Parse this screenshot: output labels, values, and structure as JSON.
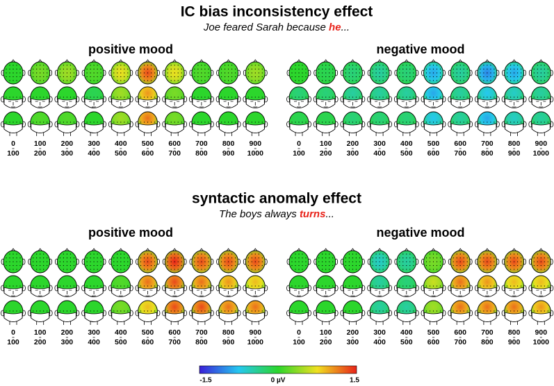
{
  "sections": [
    {
      "title": "IC bias inconsistency effect",
      "subtitle": {
        "before": "Joe feared Sarah because ",
        "highlight": "he",
        "after": "..."
      },
      "panels": [
        {
          "label": "positive mood",
          "windows": [
            {
              "start": "0",
              "end": "100"
            },
            {
              "start": "100",
              "end": "200"
            },
            {
              "start": "200",
              "end": "300"
            },
            {
              "start": "300",
              "end": "400"
            },
            {
              "start": "400",
              "end": "500"
            },
            {
              "start": "500",
              "end": "600"
            },
            {
              "start": "600",
              "end": "700"
            },
            {
              "start": "700",
              "end": "800"
            },
            {
              "start": "800",
              "end": "900"
            },
            {
              "start": "900",
              "end": "1000"
            }
          ]
        },
        {
          "label": "negative mood",
          "windows": [
            {
              "start": "0",
              "end": "100"
            },
            {
              "start": "100",
              "end": "200"
            },
            {
              "start": "200",
              "end": "300"
            },
            {
              "start": "300",
              "end": "400"
            },
            {
              "start": "400",
              "end": "500"
            },
            {
              "start": "500",
              "end": "600"
            },
            {
              "start": "600",
              "end": "700"
            },
            {
              "start": "700",
              "end": "800"
            },
            {
              "start": "800",
              "end": "900"
            },
            {
              "start": "900",
              "end": "1000"
            }
          ]
        }
      ]
    },
    {
      "title": "syntactic anomaly effect",
      "subtitle": {
        "before": "The boys always ",
        "highlight": "turns",
        "after": "..."
      },
      "panels": [
        {
          "label": "positive mood",
          "windows": [
            {
              "start": "0",
              "end": "100"
            },
            {
              "start": "100",
              "end": "200"
            },
            {
              "start": "200",
              "end": "300"
            },
            {
              "start": "300",
              "end": "400"
            },
            {
              "start": "400",
              "end": "500"
            },
            {
              "start": "500",
              "end": "600"
            },
            {
              "start": "600",
              "end": "700"
            },
            {
              "start": "700",
              "end": "800"
            },
            {
              "start": "800",
              "end": "900"
            },
            {
              "start": "900",
              "end": "1000"
            }
          ]
        },
        {
          "label": "negative mood",
          "windows": [
            {
              "start": "0",
              "end": "100"
            },
            {
              "start": "100",
              "end": "200"
            },
            {
              "start": "200",
              "end": "300"
            },
            {
              "start": "300",
              "end": "400"
            },
            {
              "start": "400",
              "end": "500"
            },
            {
              "start": "500",
              "end": "600"
            },
            {
              "start": "600",
              "end": "700"
            },
            {
              "start": "700",
              "end": "800"
            },
            {
              "start": "800",
              "end": "900"
            },
            {
              "start": "900",
              "end": "1000"
            }
          ]
        }
      ]
    }
  ],
  "colorbar": {
    "min_label": "-1.5",
    "mid_label": "0 µV",
    "max_label": "1.5"
  }
}
